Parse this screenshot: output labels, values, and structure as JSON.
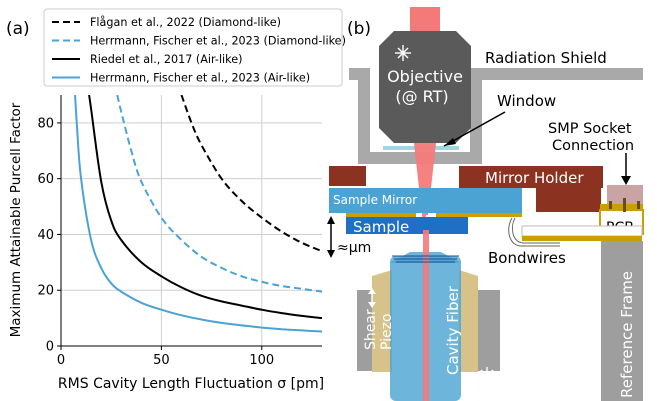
{
  "panel_a": {
    "label": "(a)",
    "ylabel": "Maximum Attainable Purcell Factor",
    "xlabel": "RMS Cavity Length Fluctuation σ [pm]",
    "xticks": [
      "0",
      "50",
      "100"
    ],
    "yticks": [
      "0",
      "20",
      "40",
      "60",
      "80"
    ]
  },
  "panel_b": {
    "label": "(b)",
    "objective_line1": "Objective",
    "objective_line2": "(@ RT)",
    "radiation_shield": "Radiation Shield",
    "window": "Window",
    "smp_line1": "SMP Socket",
    "smp_line2": "Connection",
    "mirror_holder": "Mirror Holder",
    "sample_mirror": "Sample Mirror",
    "sample": "Sample",
    "pcb": "PCB",
    "approx_um": "≈μm",
    "bondwires": "Bondwires",
    "shear_line1": "Shear",
    "shear_line2": "Piezo",
    "cavity_fiber": "Cavity Fiber",
    "reference_frame": "Reference Frame"
  },
  "colors": {
    "blue": "#4aa3d3",
    "black": "#000000",
    "laser": "#f47a7a",
    "mirror_holder": "#8b3220",
    "sample": "#1f6fc5",
    "gold": "#c9a000",
    "objective": "#5a5a5a",
    "shield": "#a9a9a9"
  },
  "chart_data": {
    "type": "line",
    "xlabel": "RMS Cavity Length Fluctuation σ [pm]",
    "ylabel": "Maximum Attainable Purcell Factor",
    "xlim": [
      0,
      130
    ],
    "ylim": [
      0,
      90
    ],
    "grid": true,
    "legend_position": "top (above plot)",
    "series": [
      {
        "name": "Flågan et al., 2022 (Diamond-like)",
        "style": "dashed",
        "color": "#000000",
        "x": [
          60,
          65,
          70,
          80,
          90,
          100,
          110,
          120,
          130
        ],
        "y": [
          90,
          80,
          72,
          60,
          52,
          46,
          41,
          37,
          34
        ]
      },
      {
        "name": "Herrmann, Fischer et al., 2023 (Diamond-like)",
        "style": "dashed",
        "color": "#4aa3d3",
        "x": [
          28,
          30,
          35,
          40,
          50,
          60,
          70,
          80,
          90,
          100,
          110,
          120,
          130
        ],
        "y": [
          90,
          84,
          70,
          59,
          46,
          38,
          32,
          28,
          25,
          23,
          21.5,
          20.5,
          19.5
        ]
      },
      {
        "name": "Riedel et al., 2017 (Air-like)",
        "style": "solid",
        "color": "#000000",
        "x": [
          14,
          15,
          20,
          25,
          30,
          40,
          50,
          60,
          70,
          80,
          90,
          100,
          110,
          120,
          130
        ],
        "y": [
          90,
          85,
          59,
          45,
          38,
          30,
          25,
          21,
          18,
          16,
          14.5,
          13,
          11.8,
          10.8,
          10
        ]
      },
      {
        "name": "Herrmann, Fischer et al., 2023 (Air-like)",
        "style": "solid",
        "color": "#4aa3d3",
        "x": [
          7,
          8,
          10,
          15,
          20,
          25,
          30,
          40,
          50,
          60,
          70,
          80,
          90,
          100,
          110,
          120,
          130
        ],
        "y": [
          90,
          78,
          60,
          38,
          28,
          22.5,
          19.5,
          15.5,
          13,
          11,
          9.5,
          8.3,
          7.4,
          6.6,
          6.0,
          5.6,
          5.2
        ]
      }
    ]
  }
}
